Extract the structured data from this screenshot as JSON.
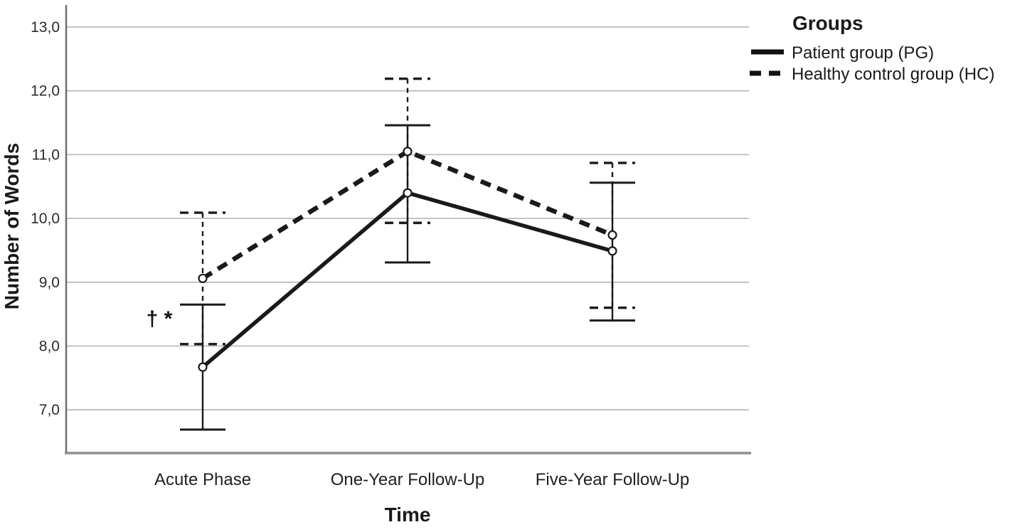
{
  "legend": {
    "title": "Groups",
    "entries": [
      {
        "label": "Patient group (PG)",
        "swatch": "solid-line-swatch"
      },
      {
        "label": "Healthy control group (HC)",
        "swatch": "dashed-line-swatch"
      }
    ]
  },
  "chart_data": {
    "type": "line",
    "xlabel": "Time",
    "ylabel": "Number of Words",
    "categories": [
      "Acute Phase",
      "One-Year Follow-Up",
      "Five-Year Follow-Up"
    ],
    "y_ticks": [
      13,
      12,
      11,
      10,
      9,
      8,
      7
    ],
    "y_tick_labels": [
      "13,0",
      "12,0",
      "11,0",
      "10,0",
      "9,0",
      "8,0",
      "7,0"
    ],
    "ylim": [
      6.3,
      13.35
    ],
    "grid": true,
    "legend_position": "top-right",
    "series": [
      {
        "name": "Patient group (PG)",
        "abbr": "PG",
        "line_style": "solid",
        "means": [
          7.67,
          10.4,
          9.49
        ],
        "ci_lower": [
          6.69,
          9.31,
          8.4
        ],
        "ci_upper": [
          8.65,
          11.46,
          10.56
        ]
      },
      {
        "name": "Healthy control group (HC)",
        "abbr": "HC",
        "line_style": "dashed",
        "means": [
          9.06,
          11.05,
          9.74
        ],
        "ci_lower": [
          8.03,
          9.93,
          8.6
        ],
        "ci_upper": [
          10.09,
          12.19,
          10.87
        ]
      }
    ],
    "annotation": {
      "text": "† *",
      "category_index": 0,
      "value": 8.45
    }
  },
  "colors": {
    "line": "#1a1a1a",
    "grid": "#bdbdbd",
    "axis_left": "#6e6e6e",
    "axis_bottom": "#8f8f8f",
    "marker_fill": "#ffffff",
    "background": "#ffffff",
    "text": "#262626"
  }
}
